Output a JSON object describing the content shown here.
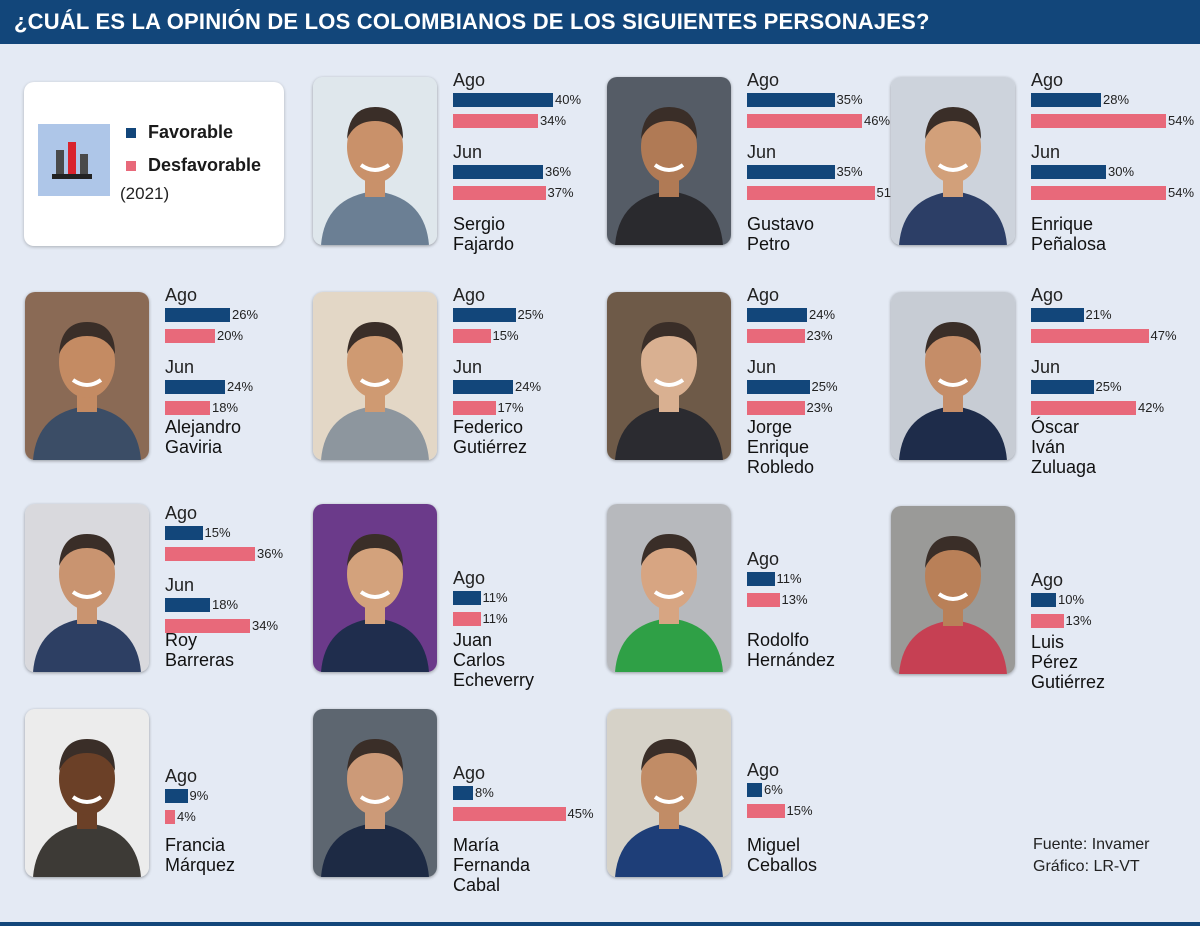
{
  "title": "¿CUÁL ES LA OPINIÓN DE LOS COLOMBIANOS DE LOS SIGUIENTES PERSONAJES?",
  "legend": {
    "favorable": "Favorable",
    "unfavorable": "Desfavorable",
    "year": "(2021)"
  },
  "source": {
    "line1": "Fuente:  Invamer",
    "line2": "Gráfico: LR-VT"
  },
  "colors": {
    "favorable": "#12467a",
    "unfavorable": "#e8697a",
    "header": "#12467a",
    "background": "#e4eaf4"
  },
  "chart_data": {
    "type": "bar",
    "unit": "%",
    "series": [
      "Favorable",
      "Desfavorable"
    ],
    "people": [
      {
        "name": [
          "Sergio Fajardo"
        ],
        "periods": [
          {
            "label": "Ago",
            "favorable": 40,
            "unfavorable": 34
          },
          {
            "label": "Jun",
            "favorable": 36,
            "unfavorable": 37
          }
        ]
      },
      {
        "name": [
          "Gustavo Petro"
        ],
        "periods": [
          {
            "label": "Ago",
            "favorable": 35,
            "unfavorable": 46
          },
          {
            "label": "Jun",
            "favorable": 35,
            "unfavorable": 51
          }
        ]
      },
      {
        "name": [
          "Enrique Peñalosa"
        ],
        "periods": [
          {
            "label": "Ago",
            "favorable": 28,
            "unfavorable": 54
          },
          {
            "label": "Jun",
            "favorable": 30,
            "unfavorable": 54
          }
        ]
      },
      {
        "name": [
          "Alejandro",
          "Gaviria"
        ],
        "periods": [
          {
            "label": "Ago",
            "favorable": 26,
            "unfavorable": 20
          },
          {
            "label": "Jun",
            "favorable": 24,
            "unfavorable": 18
          }
        ]
      },
      {
        "name": [
          "Federico",
          "Gutiérrez"
        ],
        "periods": [
          {
            "label": "Ago",
            "favorable": 25,
            "unfavorable": 15
          },
          {
            "label": "Jun",
            "favorable": 24,
            "unfavorable": 17
          }
        ]
      },
      {
        "name": [
          "Jorge Enrique",
          "Robledo"
        ],
        "periods": [
          {
            "label": "Ago",
            "favorable": 24,
            "unfavorable": 23
          },
          {
            "label": "Jun",
            "favorable": 25,
            "unfavorable": 23
          }
        ]
      },
      {
        "name": [
          "Óscar Iván",
          "Zuluaga"
        ],
        "periods": [
          {
            "label": "Ago",
            "favorable": 21,
            "unfavorable": 47
          },
          {
            "label": "Jun",
            "favorable": 25,
            "unfavorable": 42
          }
        ]
      },
      {
        "name": [
          "Roy",
          "Barreras"
        ],
        "periods": [
          {
            "label": "Ago",
            "favorable": 15,
            "unfavorable": 36
          },
          {
            "label": "Jun",
            "favorable": 18,
            "unfavorable": 34
          }
        ]
      },
      {
        "name": [
          "Juan Carlos",
          "Echeverry"
        ],
        "periods": [
          {
            "label": "Ago",
            "favorable": 11,
            "unfavorable": 11
          }
        ]
      },
      {
        "name": [
          "Rodolfo",
          "Hernández"
        ],
        "periods": [
          {
            "label": "Ago",
            "favorable": 11,
            "unfavorable": 13
          }
        ]
      },
      {
        "name": [
          "Luis Pérez",
          "Gutiérrez"
        ],
        "periods": [
          {
            "label": "Ago",
            "favorable": 10,
            "unfavorable": 13
          }
        ]
      },
      {
        "name": [
          "Francia",
          "Márquez"
        ],
        "periods": [
          {
            "label": "Ago",
            "favorable": 9,
            "unfavorable": 4
          }
        ]
      },
      {
        "name": [
          "María",
          "Fernanda Cabal"
        ],
        "periods": [
          {
            "label": "Ago",
            "favorable": 8,
            "unfavorable": 45
          }
        ]
      },
      {
        "name": [
          "Miguel",
          "Ceballos"
        ],
        "periods": [
          {
            "label": "Ago",
            "favorable": 6,
            "unfavorable": 15
          }
        ]
      }
    ]
  }
}
